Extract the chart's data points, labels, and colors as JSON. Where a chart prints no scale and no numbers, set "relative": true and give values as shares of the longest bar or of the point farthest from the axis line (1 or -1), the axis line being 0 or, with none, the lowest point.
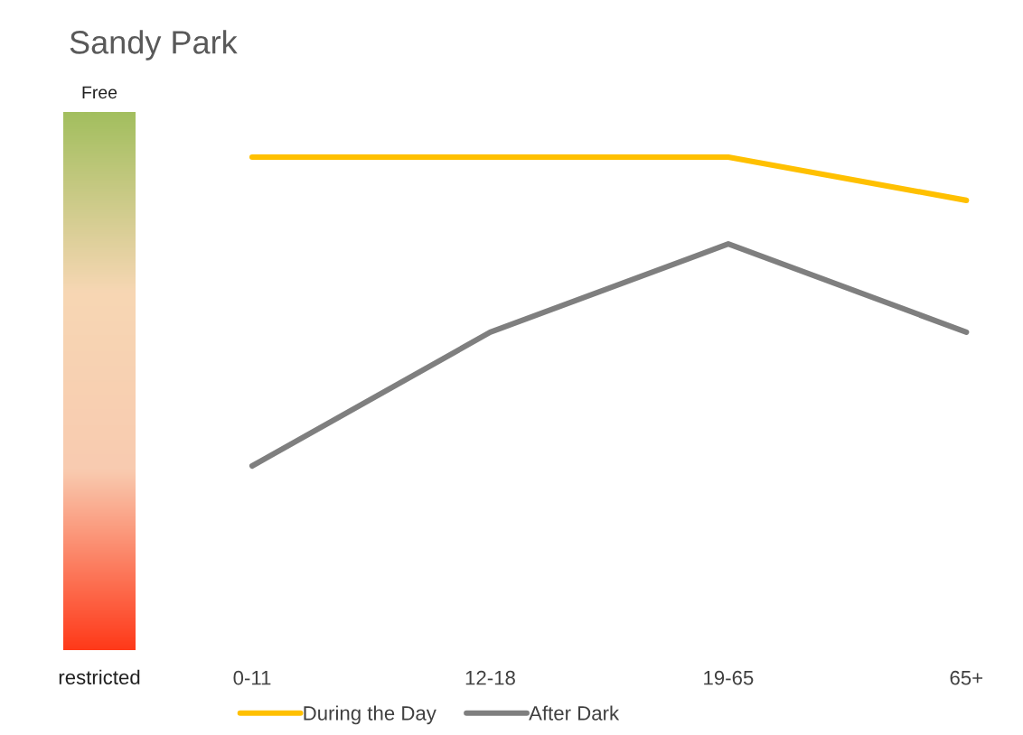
{
  "chart_data": {
    "type": "line",
    "title": "Sandy Park",
    "relative": true,
    "categories": [
      "0-11",
      "12-18",
      "19-65",
      "65+"
    ],
    "series": [
      {
        "name": "During the Day",
        "color": "#ffc000",
        "values": [
          1,
          1,
          1,
          0.86
        ]
      },
      {
        "name": "After Dark",
        "color": "#7f7f7f",
        "values": [
          0,
          0.433,
          0.719,
          0.433
        ]
      }
    ],
    "annotations": [
      "Free",
      "restricted"
    ],
    "legend": "bottom",
    "grid": false,
    "marker": "none",
    "line_style": "solid"
  }
}
